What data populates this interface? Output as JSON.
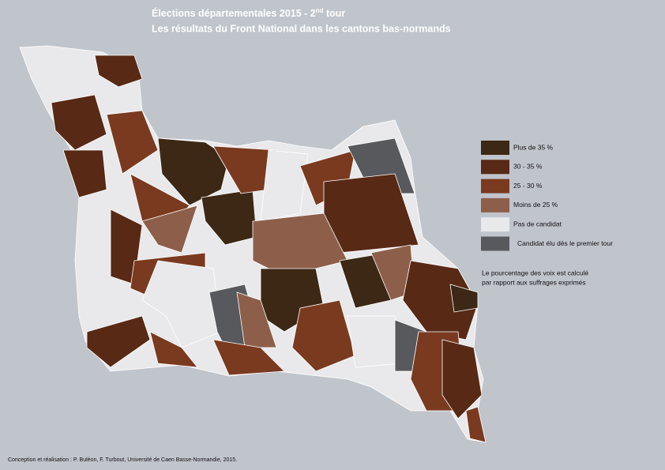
{
  "header": {
    "title_line1": {
      "text": "Élections départementales 2015 - 2",
      "sup": "nd",
      "rest": " tour"
    },
    "title_line2": "Les résultats du Front National dans les cantons bas-normands"
  },
  "legend": [
    {
      "label": "Plus de 35 %",
      "color": "#3c2815"
    },
    {
      "label": "30 - 35 %",
      "color": "#582915"
    },
    {
      "label": "25 - 30 %",
      "color": "#7a3a1f"
    },
    {
      "label": "Moins de 25 %",
      "color": "#8d5f4a"
    },
    {
      "label": "Pas de candidat",
      "color": "#e9e9eb"
    },
    {
      "label": "Candidat élu dès le premier tour",
      "color": "#58595c"
    }
  ],
  "note": [
    "Le pourcentage des voix est calculé",
    "par rapport aux suffrages exprimés"
  ],
  "credit": "Conception et réalisation : P. Buléon, F. Turbout, Université de Caen Basse-Normandie, 2015."
}
